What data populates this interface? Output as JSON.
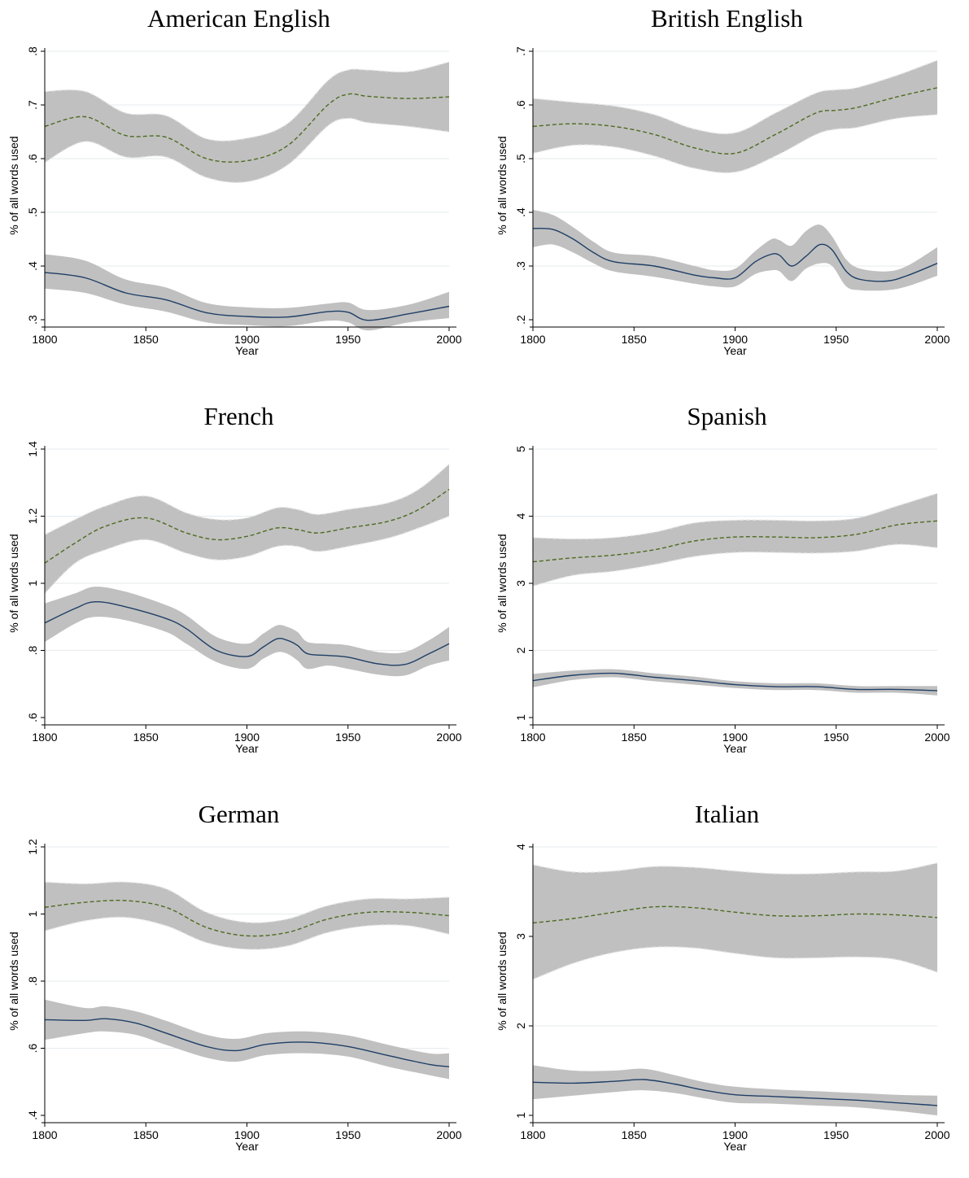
{
  "chart_data": [
    {
      "type": "line",
      "title": "American English",
      "xlabel": "Year",
      "ylabel": "% of all words used",
      "xlim": [
        1800,
        2000
      ],
      "ylim": [
        0.3,
        0.8
      ],
      "xticks": [
        1800,
        1850,
        1900,
        1950,
        2000
      ],
      "yticks": [
        ".3",
        ".4",
        ".5",
        ".6",
        ".7",
        ".8"
      ],
      "ytick_values": [
        0.3,
        0.4,
        0.5,
        0.6,
        0.7,
        0.8
      ],
      "grid": true,
      "series": [
        {
          "style": "dashed",
          "color": "#4d6b1f",
          "x": [
            1800,
            1820,
            1840,
            1860,
            1880,
            1900,
            1920,
            1940,
            1950,
            1960,
            1980,
            2000
          ],
          "values": [
            0.66,
            0.678,
            0.643,
            0.64,
            0.6,
            0.596,
            0.624,
            0.7,
            0.72,
            0.716,
            0.712,
            0.715
          ],
          "ci_low": [
            0.593,
            0.632,
            0.603,
            0.603,
            0.565,
            0.557,
            0.588,
            0.661,
            0.675,
            0.667,
            0.66,
            0.65
          ],
          "ci_high": [
            0.725,
            0.725,
            0.685,
            0.68,
            0.637,
            0.638,
            0.665,
            0.745,
            0.765,
            0.765,
            0.762,
            0.78
          ]
        },
        {
          "style": "solid",
          "color": "#1f3f66",
          "x": [
            1800,
            1820,
            1840,
            1860,
            1880,
            1900,
            1920,
            1940,
            1950,
            1960,
            1980,
            2000
          ],
          "values": [
            0.388,
            0.378,
            0.35,
            0.337,
            0.313,
            0.306,
            0.305,
            0.315,
            0.314,
            0.299,
            0.311,
            0.325
          ],
          "ci_low": [
            0.358,
            0.35,
            0.328,
            0.315,
            0.295,
            0.29,
            0.288,
            0.298,
            0.295,
            0.28,
            0.295,
            0.303
          ],
          "ci_high": [
            0.422,
            0.41,
            0.375,
            0.36,
            0.331,
            0.323,
            0.322,
            0.33,
            0.332,
            0.318,
            0.328,
            0.352
          ]
        }
      ]
    },
    {
      "type": "line",
      "title": "British English",
      "xlabel": "Year",
      "ylabel": "% of all words used",
      "xlim": [
        1800,
        2000
      ],
      "ylim": [
        0.2,
        0.7
      ],
      "xticks": [
        1800,
        1850,
        1900,
        1950,
        2000
      ],
      "yticks": [
        ".2",
        ".3",
        ".4",
        ".5",
        ".6",
        ".7"
      ],
      "ytick_values": [
        0.2,
        0.3,
        0.4,
        0.5,
        0.6,
        0.7
      ],
      "grid": true,
      "series": [
        {
          "style": "dashed",
          "color": "#4d6b1f",
          "x": [
            1800,
            1820,
            1840,
            1860,
            1880,
            1900,
            1920,
            1940,
            1950,
            1960,
            1980,
            2000
          ],
          "values": [
            0.56,
            0.565,
            0.56,
            0.545,
            0.52,
            0.51,
            0.545,
            0.585,
            0.59,
            0.595,
            0.615,
            0.632
          ],
          "ci_low": [
            0.51,
            0.525,
            0.522,
            0.505,
            0.482,
            0.475,
            0.505,
            0.545,
            0.555,
            0.558,
            0.575,
            0.582
          ],
          "ci_high": [
            0.612,
            0.605,
            0.598,
            0.582,
            0.555,
            0.548,
            0.585,
            0.622,
            0.628,
            0.632,
            0.655,
            0.683
          ]
        },
        {
          "style": "solid",
          "color": "#1f3f66",
          "x": [
            1800,
            1810,
            1820,
            1830,
            1840,
            1860,
            1880,
            1890,
            1900,
            1910,
            1918,
            1922,
            1928,
            1935,
            1942,
            1948,
            1955,
            1962,
            1975,
            1985,
            2000
          ],
          "values": [
            0.37,
            0.368,
            0.35,
            0.325,
            0.308,
            0.3,
            0.283,
            0.278,
            0.278,
            0.308,
            0.322,
            0.32,
            0.3,
            0.318,
            0.34,
            0.33,
            0.29,
            0.275,
            0.272,
            0.282,
            0.305
          ],
          "ci_low": [
            0.335,
            0.34,
            0.325,
            0.305,
            0.29,
            0.28,
            0.267,
            0.262,
            0.262,
            0.285,
            0.292,
            0.29,
            0.272,
            0.295,
            0.305,
            0.3,
            0.262,
            0.255,
            0.255,
            0.262,
            0.282
          ],
          "ci_high": [
            0.405,
            0.395,
            0.372,
            0.345,
            0.325,
            0.318,
            0.3,
            0.292,
            0.295,
            0.328,
            0.35,
            0.348,
            0.338,
            0.365,
            0.377,
            0.355,
            0.312,
            0.295,
            0.29,
            0.3,
            0.335
          ]
        }
      ]
    },
    {
      "type": "line",
      "title": "French",
      "xlabel": "Year",
      "ylabel": "% of all words used",
      "xlim": [
        1800,
        2000
      ],
      "ylim": [
        0.6,
        1.4
      ],
      "xticks": [
        1800,
        1850,
        1900,
        1950,
        2000
      ],
      "yticks": [
        ".6",
        ".8",
        "1",
        "1.2",
        "1.4"
      ],
      "ytick_values": [
        0.6,
        0.8,
        1.0,
        1.2,
        1.4
      ],
      "grid": true,
      "series": [
        {
          "style": "dashed",
          "color": "#4d6b1f",
          "x": [
            1800,
            1815,
            1830,
            1850,
            1870,
            1885,
            1900,
            1915,
            1925,
            1935,
            1950,
            1970,
            1985,
            2000
          ],
          "values": [
            1.06,
            1.12,
            1.17,
            1.195,
            1.15,
            1.13,
            1.14,
            1.165,
            1.16,
            1.15,
            1.165,
            1.185,
            1.22,
            1.28
          ],
          "ci_low": [
            0.97,
            1.06,
            1.1,
            1.13,
            1.09,
            1.07,
            1.08,
            1.11,
            1.11,
            1.095,
            1.11,
            1.135,
            1.165,
            1.2
          ],
          "ci_high": [
            1.145,
            1.19,
            1.23,
            1.26,
            1.21,
            1.19,
            1.195,
            1.225,
            1.22,
            1.205,
            1.22,
            1.24,
            1.28,
            1.355
          ]
        },
        {
          "style": "solid",
          "color": "#1f3f66",
          "x": [
            1800,
            1815,
            1825,
            1840,
            1860,
            1870,
            1885,
            1900,
            1908,
            1915,
            1920,
            1925,
            1930,
            1940,
            1950,
            1965,
            1978,
            1990,
            2000
          ],
          "values": [
            0.882,
            0.925,
            0.945,
            0.93,
            0.895,
            0.865,
            0.8,
            0.782,
            0.81,
            0.835,
            0.83,
            0.815,
            0.79,
            0.785,
            0.78,
            0.76,
            0.758,
            0.79,
            0.82
          ],
          "ci_low": [
            0.825,
            0.88,
            0.9,
            0.89,
            0.855,
            0.82,
            0.765,
            0.745,
            0.775,
            0.795,
            0.79,
            0.77,
            0.745,
            0.755,
            0.745,
            0.728,
            0.725,
            0.755,
            0.77
          ],
          "ci_high": [
            0.94,
            0.97,
            0.99,
            0.975,
            0.935,
            0.905,
            0.84,
            0.82,
            0.85,
            0.875,
            0.87,
            0.855,
            0.825,
            0.82,
            0.815,
            0.795,
            0.795,
            0.83,
            0.87
          ]
        }
      ]
    },
    {
      "type": "line",
      "title": "Spanish",
      "xlabel": "Year",
      "ylabel": "% of all words used",
      "xlim": [
        1800,
        2000
      ],
      "ylim": [
        1,
        5
      ],
      "xticks": [
        1800,
        1850,
        1900,
        1950,
        2000
      ],
      "yticks": [
        "1",
        "2",
        "3",
        "4",
        "5"
      ],
      "ytick_values": [
        1,
        2,
        3,
        4,
        5
      ],
      "grid": true,
      "series": [
        {
          "style": "dashed",
          "color": "#4d6b1f",
          "x": [
            1800,
            1820,
            1840,
            1860,
            1880,
            1900,
            1920,
            1940,
            1960,
            1980,
            2000
          ],
          "values": [
            3.32,
            3.38,
            3.42,
            3.5,
            3.63,
            3.69,
            3.69,
            3.68,
            3.73,
            3.87,
            3.93
          ],
          "ci_low": [
            2.96,
            3.12,
            3.18,
            3.28,
            3.4,
            3.46,
            3.46,
            3.45,
            3.48,
            3.58,
            3.53
          ],
          "ci_high": [
            3.68,
            3.66,
            3.68,
            3.76,
            3.9,
            3.94,
            3.94,
            3.93,
            3.97,
            4.15,
            4.34
          ]
        },
        {
          "style": "solid",
          "color": "#1f3f66",
          "x": [
            1800,
            1820,
            1840,
            1860,
            1880,
            1900,
            1920,
            1940,
            1960,
            1980,
            2000
          ],
          "values": [
            1.55,
            1.63,
            1.66,
            1.6,
            1.55,
            1.49,
            1.46,
            1.46,
            1.42,
            1.42,
            1.4
          ],
          "ci_low": [
            1.45,
            1.56,
            1.6,
            1.54,
            1.49,
            1.44,
            1.41,
            1.41,
            1.37,
            1.37,
            1.33
          ],
          "ci_high": [
            1.65,
            1.7,
            1.72,
            1.66,
            1.61,
            1.54,
            1.51,
            1.51,
            1.47,
            1.47,
            1.47
          ]
        }
      ]
    },
    {
      "type": "line",
      "title": "German",
      "xlabel": "Year",
      "ylabel": "% of all words used",
      "xlim": [
        1800,
        2000
      ],
      "ylim": [
        0.4,
        1.2
      ],
      "xticks": [
        1800,
        1850,
        1900,
        1950,
        2000
      ],
      "yticks": [
        ".4",
        ".6",
        ".8",
        "1",
        "1.2"
      ],
      "ytick_values": [
        0.4,
        0.6,
        0.8,
        1.0,
        1.2
      ],
      "grid": true,
      "series": [
        {
          "style": "dashed",
          "color": "#4d6b1f",
          "x": [
            1800,
            1820,
            1840,
            1860,
            1880,
            1900,
            1920,
            1940,
            1960,
            1980,
            2000
          ],
          "values": [
            1.02,
            1.035,
            1.04,
            1.02,
            0.96,
            0.935,
            0.945,
            0.985,
            1.005,
            1.005,
            0.995
          ],
          "ci_low": [
            0.95,
            0.98,
            0.99,
            0.965,
            0.915,
            0.895,
            0.905,
            0.945,
            0.965,
            0.965,
            0.94
          ],
          "ci_high": [
            1.095,
            1.09,
            1.095,
            1.075,
            1.005,
            0.975,
            0.985,
            1.025,
            1.045,
            1.045,
            1.05
          ]
        },
        {
          "style": "solid",
          "color": "#1f3f66",
          "x": [
            1800,
            1820,
            1830,
            1845,
            1860,
            1880,
            1895,
            1910,
            1930,
            1950,
            1970,
            1990,
            2000
          ],
          "values": [
            0.685,
            0.683,
            0.688,
            0.675,
            0.645,
            0.605,
            0.593,
            0.612,
            0.618,
            0.605,
            0.578,
            0.552,
            0.545
          ],
          "ci_low": [
            0.625,
            0.645,
            0.65,
            0.64,
            0.61,
            0.572,
            0.56,
            0.58,
            0.585,
            0.575,
            0.545,
            0.52,
            0.508
          ],
          "ci_high": [
            0.745,
            0.72,
            0.725,
            0.71,
            0.682,
            0.64,
            0.628,
            0.645,
            0.65,
            0.638,
            0.61,
            0.585,
            0.585
          ]
        }
      ]
    },
    {
      "type": "line",
      "title": "Italian",
      "xlabel": "Year",
      "ylabel": "% of all words used",
      "xlim": [
        1800,
        2000
      ],
      "ylim": [
        1,
        4
      ],
      "xticks": [
        1800,
        1850,
        1900,
        1950,
        2000
      ],
      "yticks": [
        "1",
        "2",
        "3",
        "4"
      ],
      "ytick_values": [
        1,
        2,
        3,
        4
      ],
      "grid": true,
      "series": [
        {
          "style": "dashed",
          "color": "#4d6b1f",
          "x": [
            1800,
            1820,
            1840,
            1860,
            1880,
            1900,
            1920,
            1940,
            1960,
            1980,
            2000
          ],
          "values": [
            3.15,
            3.2,
            3.27,
            3.33,
            3.32,
            3.27,
            3.23,
            3.23,
            3.25,
            3.24,
            3.21
          ],
          "ci_low": [
            2.52,
            2.7,
            2.82,
            2.88,
            2.87,
            2.81,
            2.76,
            2.76,
            2.77,
            2.74,
            2.6
          ],
          "ci_high": [
            3.8,
            3.72,
            3.73,
            3.78,
            3.77,
            3.73,
            3.7,
            3.7,
            3.72,
            3.73,
            3.82
          ]
        },
        {
          "style": "solid",
          "color": "#1f3f66",
          "x": [
            1800,
            1820,
            1840,
            1855,
            1870,
            1885,
            1900,
            1920,
            1940,
            1960,
            1980,
            2000
          ],
          "values": [
            1.37,
            1.36,
            1.38,
            1.4,
            1.35,
            1.28,
            1.23,
            1.21,
            1.19,
            1.17,
            1.14,
            1.11
          ],
          "ci_low": [
            1.18,
            1.22,
            1.26,
            1.28,
            1.25,
            1.19,
            1.14,
            1.13,
            1.11,
            1.09,
            1.05,
            1.0
          ],
          "ci_high": [
            1.56,
            1.5,
            1.5,
            1.52,
            1.45,
            1.37,
            1.32,
            1.29,
            1.27,
            1.25,
            1.23,
            1.22
          ]
        }
      ]
    }
  ]
}
